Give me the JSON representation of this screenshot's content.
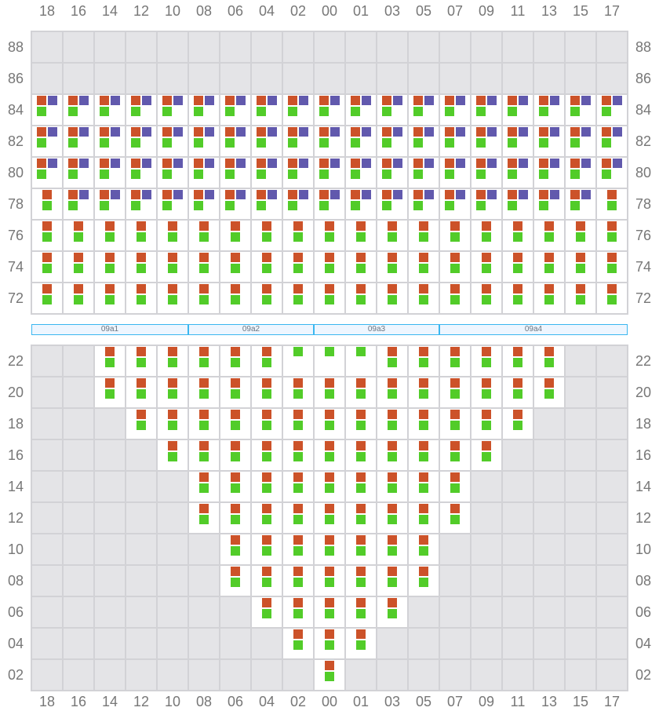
{
  "colors": {
    "o": "#cc5229",
    "p": "#6159ad",
    "g": "#52cc29"
  },
  "columns": [
    "18",
    "16",
    "14",
    "12",
    "10",
    "08",
    "06",
    "04",
    "02",
    "00",
    "01",
    "03",
    "05",
    "07",
    "09",
    "11",
    "13",
    "15",
    "17"
  ],
  "top_rows": [
    {
      "label": "88",
      "cells": [
        "",
        "",
        "",
        "",
        "",
        "",
        "",
        "",
        "",
        "",
        "",
        "",
        "",
        "",
        "",
        "",
        "",
        "",
        ""
      ]
    },
    {
      "label": "86",
      "cells": [
        "",
        "",
        "",
        "",
        "",
        "",
        "",
        "",
        "",
        "",
        "",
        "",
        "",
        "",
        "",
        "",
        "",
        "",
        ""
      ]
    },
    {
      "label": "84",
      "cells": [
        "opg",
        "opg",
        "opg",
        "opg",
        "opg",
        "opg",
        "opg",
        "opg",
        "opg",
        "opg",
        "opg",
        "opg",
        "opg",
        "opg",
        "opg",
        "opg",
        "opg",
        "opg",
        "opg"
      ]
    },
    {
      "label": "82",
      "cells": [
        "opg",
        "opg",
        "opg",
        "opg",
        "opg",
        "opg",
        "opg",
        "opg",
        "opg",
        "opg",
        "opg",
        "opg",
        "opg",
        "opg",
        "opg",
        "opg",
        "opg",
        "opg",
        "opg"
      ]
    },
    {
      "label": "80",
      "cells": [
        "opg",
        "opg",
        "opg",
        "opg",
        "opg",
        "opg",
        "opg",
        "opg",
        "opg",
        "opg",
        "opg",
        "opg",
        "opg",
        "opg",
        "opg",
        "opg",
        "opg",
        "opg",
        "opg"
      ]
    },
    {
      "label": "78",
      "cells": [
        "og",
        "opg",
        "opg",
        "opg",
        "opg",
        "opg",
        "opg",
        "opg",
        "opg",
        "opg",
        "opg",
        "opg",
        "opg",
        "opg",
        "opg",
        "opg",
        "opg",
        "opg",
        "og"
      ]
    },
    {
      "label": "76",
      "cells": [
        "og",
        "og",
        "og",
        "og",
        "og",
        "og",
        "og",
        "og",
        "og",
        "og",
        "og",
        "og",
        "og",
        "og",
        "og",
        "og",
        "og",
        "og",
        "og"
      ]
    },
    {
      "label": "74",
      "cells": [
        "og",
        "og",
        "og",
        "og",
        "og",
        "og",
        "og",
        "og",
        "og",
        "og",
        "og",
        "og",
        "og",
        "og",
        "og",
        "og",
        "og",
        "og",
        "og"
      ]
    },
    {
      "label": "72",
      "cells": [
        "og",
        "og",
        "og",
        "og",
        "og",
        "og",
        "og",
        "og",
        "og",
        "og",
        "og",
        "og",
        "og",
        "og",
        "og",
        "og",
        "og",
        "og",
        "og"
      ]
    }
  ],
  "sections": [
    {
      "label": "09a1",
      "from": 0,
      "to": 5
    },
    {
      "label": "09a2",
      "from": 5,
      "to": 9
    },
    {
      "label": "09a3",
      "from": 9,
      "to": 13
    },
    {
      "label": "09a4",
      "from": 13,
      "to": 19
    }
  ],
  "bottom_rows": [
    {
      "label": "22",
      "cells": [
        "",
        "",
        "og",
        "og",
        "og",
        "og",
        "og",
        "og",
        "g",
        "g",
        "g",
        "og",
        "og",
        "og",
        "og",
        "og",
        "og",
        "",
        ""
      ]
    },
    {
      "label": "20",
      "cells": [
        "",
        "",
        "og",
        "og",
        "og",
        "og",
        "og",
        "og",
        "og",
        "og",
        "og",
        "og",
        "og",
        "og",
        "og",
        "og",
        "og",
        "",
        ""
      ]
    },
    {
      "label": "18",
      "cells": [
        "",
        "",
        "",
        "og",
        "og",
        "og",
        "og",
        "og",
        "og",
        "og",
        "og",
        "og",
        "og",
        "og",
        "og",
        "og",
        "",
        "",
        ""
      ]
    },
    {
      "label": "16",
      "cells": [
        "",
        "",
        "",
        "",
        "og",
        "og",
        "og",
        "og",
        "og",
        "og",
        "og",
        "og",
        "og",
        "og",
        "og",
        "",
        "",
        "",
        ""
      ]
    },
    {
      "label": "14",
      "cells": [
        "",
        "",
        "",
        "",
        "",
        "og",
        "og",
        "og",
        "og",
        "og",
        "og",
        "og",
        "og",
        "og",
        "",
        "",
        "",
        "",
        ""
      ]
    },
    {
      "label": "12",
      "cells": [
        "",
        "",
        "",
        "",
        "",
        "og",
        "og",
        "og",
        "og",
        "og",
        "og",
        "og",
        "og",
        "og",
        "",
        "",
        "",
        "",
        ""
      ]
    },
    {
      "label": "10",
      "cells": [
        "",
        "",
        "",
        "",
        "",
        "",
        "og",
        "og",
        "og",
        "og",
        "og",
        "og",
        "og",
        "",
        "",
        "",
        "",
        "",
        ""
      ]
    },
    {
      "label": "08",
      "cells": [
        "",
        "",
        "",
        "",
        "",
        "",
        "og",
        "og",
        "og",
        "og",
        "og",
        "og",
        "og",
        "",
        "",
        "",
        "",
        "",
        ""
      ]
    },
    {
      "label": "06",
      "cells": [
        "",
        "",
        "",
        "",
        "",
        "",
        "",
        "og",
        "og",
        "og",
        "og",
        "og",
        "",
        "",
        "",
        "",
        "",
        "",
        ""
      ]
    },
    {
      "label": "04",
      "cells": [
        "",
        "",
        "",
        "",
        "",
        "",
        "",
        "",
        "og",
        "og",
        "og",
        "",
        "",
        "",
        "",
        "",
        "",
        "",
        ""
      ]
    },
    {
      "label": "02",
      "cells": [
        "",
        "",
        "",
        "",
        "",
        "",
        "",
        "",
        "",
        "og",
        "",
        "",
        "",
        "",
        "",
        "",
        "",
        "",
        ""
      ]
    }
  ]
}
